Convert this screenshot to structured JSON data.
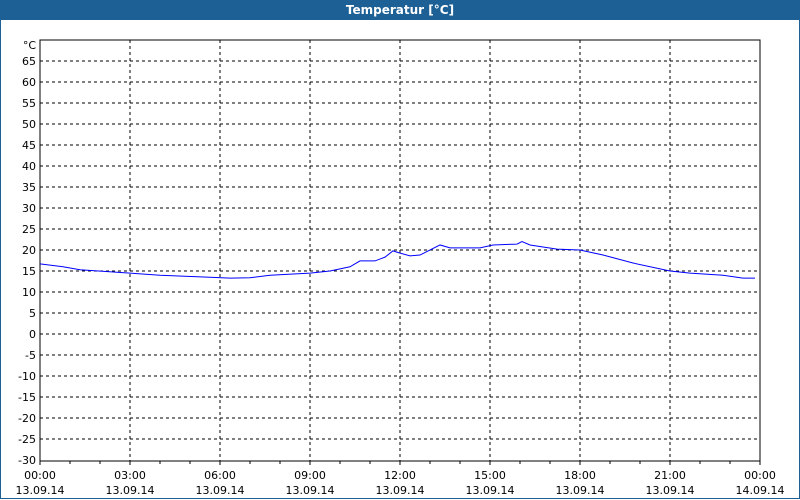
{
  "window": {
    "title": "Temperatur [°C]",
    "title_bar_color": "#1c6096"
  },
  "chart_data": {
    "type": "line",
    "title": "Temperatur [°C]",
    "ylabel": "°C",
    "xlabel": "",
    "ylim": [
      -30,
      65
    ],
    "y_ticks": [
      "65",
      "60",
      "55",
      "50",
      "45",
      "40",
      "35",
      "30",
      "25",
      "20",
      "15",
      "10",
      "5",
      "0",
      "-5",
      "-10",
      "-15",
      "-20",
      "-25",
      "-30"
    ],
    "x_ticks": [
      {
        "time": "00:00",
        "date": "13.09.14"
      },
      {
        "time": "03:00",
        "date": "13.09.14"
      },
      {
        "time": "06:00",
        "date": "13.09.14"
      },
      {
        "time": "09:00",
        "date": "13.09.14"
      },
      {
        "time": "12:00",
        "date": "13.09.14"
      },
      {
        "time": "15:00",
        "date": "13.09.14"
      },
      {
        "time": "18:00",
        "date": "13.09.14"
      },
      {
        "time": "21:00",
        "date": "13.09.14"
      },
      {
        "time": "00:00",
        "date": "14.09.14"
      }
    ],
    "grid": true,
    "series": [
      {
        "color": "#0000ff",
        "x": [
          "00:00",
          "00:46",
          "01:20",
          "03:00",
          "04:00",
          "05:40",
          "06:20",
          "07:00",
          "07:40",
          "09:00",
          "09:40",
          "10:20",
          "10:40",
          "11:10",
          "11:30",
          "11:46",
          "11:56",
          "12:20",
          "12:40",
          "13:20",
          "13:40",
          "14:40",
          "15:06",
          "15:54",
          "16:04",
          "16:20",
          "17:14",
          "18:00",
          "18:46",
          "19:46",
          "21:00",
          "21:40",
          "22:46",
          "23:26",
          "23:50"
        ],
        "y": [
          16.7,
          16.0,
          15.3,
          14.5,
          14.0,
          13.5,
          13.3,
          13.4,
          14.0,
          14.5,
          15.0,
          16.0,
          17.4,
          17.4,
          18.3,
          19.8,
          19.4,
          18.6,
          18.8,
          21.2,
          20.5,
          20.5,
          21.2,
          21.4,
          22.0,
          21.2,
          20.2,
          20.0,
          18.8,
          16.9,
          15.0,
          14.5,
          14.0,
          13.3,
          13.3
        ]
      }
    ]
  }
}
